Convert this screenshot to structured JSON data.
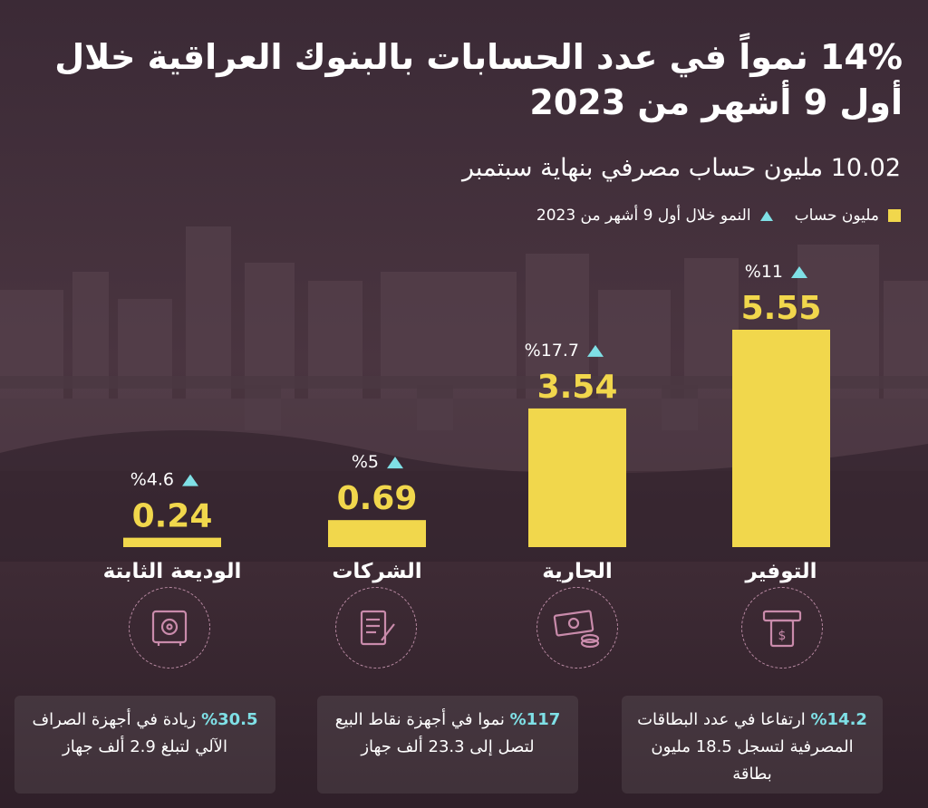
{
  "title": "14% نمواً في عدد الحسابات بالبنوك العراقية خلال أول 9 أشهر من 2023",
  "subtitle": "10.02 مليون حساب مصرفي بنهاية سبتمبر",
  "legend": {
    "bars": "مليون حساب",
    "growth": "النمو خلال أول 9 أشهر من 2023"
  },
  "colors": {
    "bar": "#f1d74c",
    "growth_marker": "#7fe0e6",
    "icon_stroke": "#c98bab"
  },
  "chart_data": {
    "type": "bar",
    "title": "",
    "xlabel": "",
    "ylabel": "",
    "ylim": [
      0,
      6
    ],
    "unit": "مليون حساب",
    "categories": [
      "التوفير",
      "الجارية",
      "الشركات",
      "الوديعة الثابتة"
    ],
    "values": [
      5.55,
      3.54,
      0.69,
      0.24
    ],
    "value_labels": [
      "5.55",
      "3.54",
      "0.69",
      "0.24"
    ],
    "growth_labels": [
      "%11",
      "%17.7",
      "%5",
      "%4.6"
    ],
    "growth_percent": [
      11,
      17.7,
      5,
      4.6
    ],
    "legend_position": "top-right"
  },
  "icons": [
    "atm-icon",
    "cash-icon",
    "document-pen-icon",
    "safe-icon"
  ],
  "cards": [
    {
      "pct": "%14.2",
      "text": " ارتفاعا في عدد البطاقات المصرفية لتسجل 18.5 مليون بطاقة"
    },
    {
      "pct": "%117",
      "text": " نموا في أجهزة نقاط البيع لتصل إلى 23.3 ألف جهاز"
    },
    {
      "pct": "%30.5",
      "text": " زيادة في أجهزة الصراف الآلي لتبلغ 2.9 ألف جهاز"
    }
  ]
}
